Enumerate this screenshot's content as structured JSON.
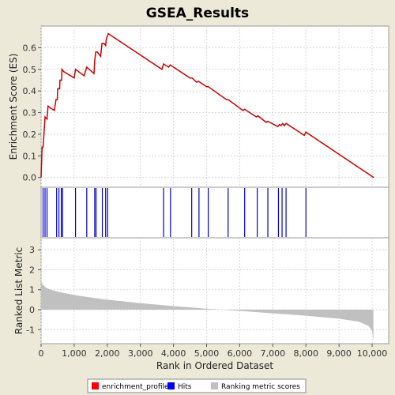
{
  "chart_data": {
    "type": "line",
    "title": "GSEA_Results",
    "x_axis": {
      "label": "Rank in Ordered Dataset",
      "range": [
        0,
        10500
      ],
      "ticks": [
        0,
        1000,
        2000,
        3000,
        4000,
        5000,
        6000,
        7000,
        8000,
        9000,
        10000
      ],
      "tick_labels": [
        "0",
        "1,000",
        "2,000",
        "3,000",
        "4,000",
        "5,000",
        "6,000",
        "7,000",
        "8,000",
        "9,000",
        "10,000"
      ]
    },
    "enrichment_panel": {
      "ylabel": "Enrichment Score (ES)",
      "ylim": [
        -0.045,
        0.7
      ],
      "ticks": [
        0.0,
        0.1,
        0.2,
        0.3,
        0.4,
        0.5,
        0.6
      ],
      "tick_labels": [
        "0.0",
        "0.1",
        "0.2",
        "0.3",
        "0.4",
        "0.5",
        "0.6"
      ],
      "grid": true,
      "series": [
        {
          "name": "enrichment_profile",
          "color": "#cc0000",
          "x": [
            0,
            30,
            60,
            90,
            120,
            180,
            210,
            300,
            400,
            450,
            490,
            500,
            560,
            570,
            620,
            630,
            680,
            1000,
            1040,
            1300,
            1380,
            1600,
            1620,
            1650,
            1700,
            1800,
            1840,
            1900,
            1950,
            1970,
            2030,
            3650,
            3700,
            3850,
            3900,
            4500,
            4560,
            4700,
            4750,
            5000,
            5050,
            5600,
            5650,
            6100,
            6150,
            6500,
            6550,
            6800,
            6850,
            7150,
            7200,
            7250,
            7300,
            7350,
            7400,
            7950,
            8000,
            10050
          ],
          "y": [
            0.0,
            0.14,
            0.14,
            0.21,
            0.28,
            0.27,
            0.33,
            0.32,
            0.31,
            0.36,
            0.36,
            0.41,
            0.41,
            0.45,
            0.45,
            0.5,
            0.49,
            0.46,
            0.5,
            0.47,
            0.51,
            0.48,
            0.54,
            0.58,
            0.58,
            0.56,
            0.62,
            0.62,
            0.61,
            0.64,
            0.665,
            0.5,
            0.525,
            0.51,
            0.52,
            0.46,
            0.46,
            0.44,
            0.445,
            0.42,
            0.42,
            0.36,
            0.36,
            0.31,
            0.315,
            0.28,
            0.285,
            0.255,
            0.26,
            0.235,
            0.245,
            0.24,
            0.25,
            0.24,
            0.25,
            0.195,
            0.21,
            0.0
          ]
        }
      ]
    },
    "hits_panel": {
      "name": "Hits",
      "color": "#0000cc",
      "positions": [
        60,
        120,
        180,
        470,
        540,
        610,
        650,
        1040,
        1380,
        1620,
        1660,
        1850,
        1950,
        2010,
        3700,
        3910,
        4550,
        4770,
        5050,
        5650,
        6150,
        6530,
        6850,
        7170,
        7280,
        7400,
        8000
      ]
    },
    "ranking_panel": {
      "name": "Ranking metric scores",
      "ylabel": "Ranked List Metric",
      "ylim": [
        -1.7,
        3.6
      ],
      "ticks": [
        -1,
        0,
        1,
        2,
        3
      ],
      "tick_labels": [
        "-1",
        "0",
        "1",
        "2",
        "3"
      ],
      "color": "#c0c0c0",
      "grid": true,
      "x": [
        0,
        50,
        150,
        300,
        500,
        800,
        1200,
        2000,
        3000,
        4000,
        5000,
        5600,
        6000,
        7000,
        8000,
        9000,
        9600,
        9900,
        10000,
        10040
      ],
      "y": [
        1.45,
        1.25,
        1.1,
        1.0,
        0.9,
        0.8,
        0.68,
        0.5,
        0.33,
        0.18,
        0.05,
        -0.02,
        -0.06,
        -0.18,
        -0.3,
        -0.45,
        -0.6,
        -0.82,
        -1.05,
        -1.55
      ]
    },
    "legend": {
      "placement": "bottom",
      "items": [
        {
          "label": "enrichment_profile",
          "color": "#ff0000"
        },
        {
          "label": "Hits",
          "color": "#0000ff"
        },
        {
          "label": "Ranking metric scores",
          "color": "#c0c0c0"
        }
      ]
    }
  }
}
